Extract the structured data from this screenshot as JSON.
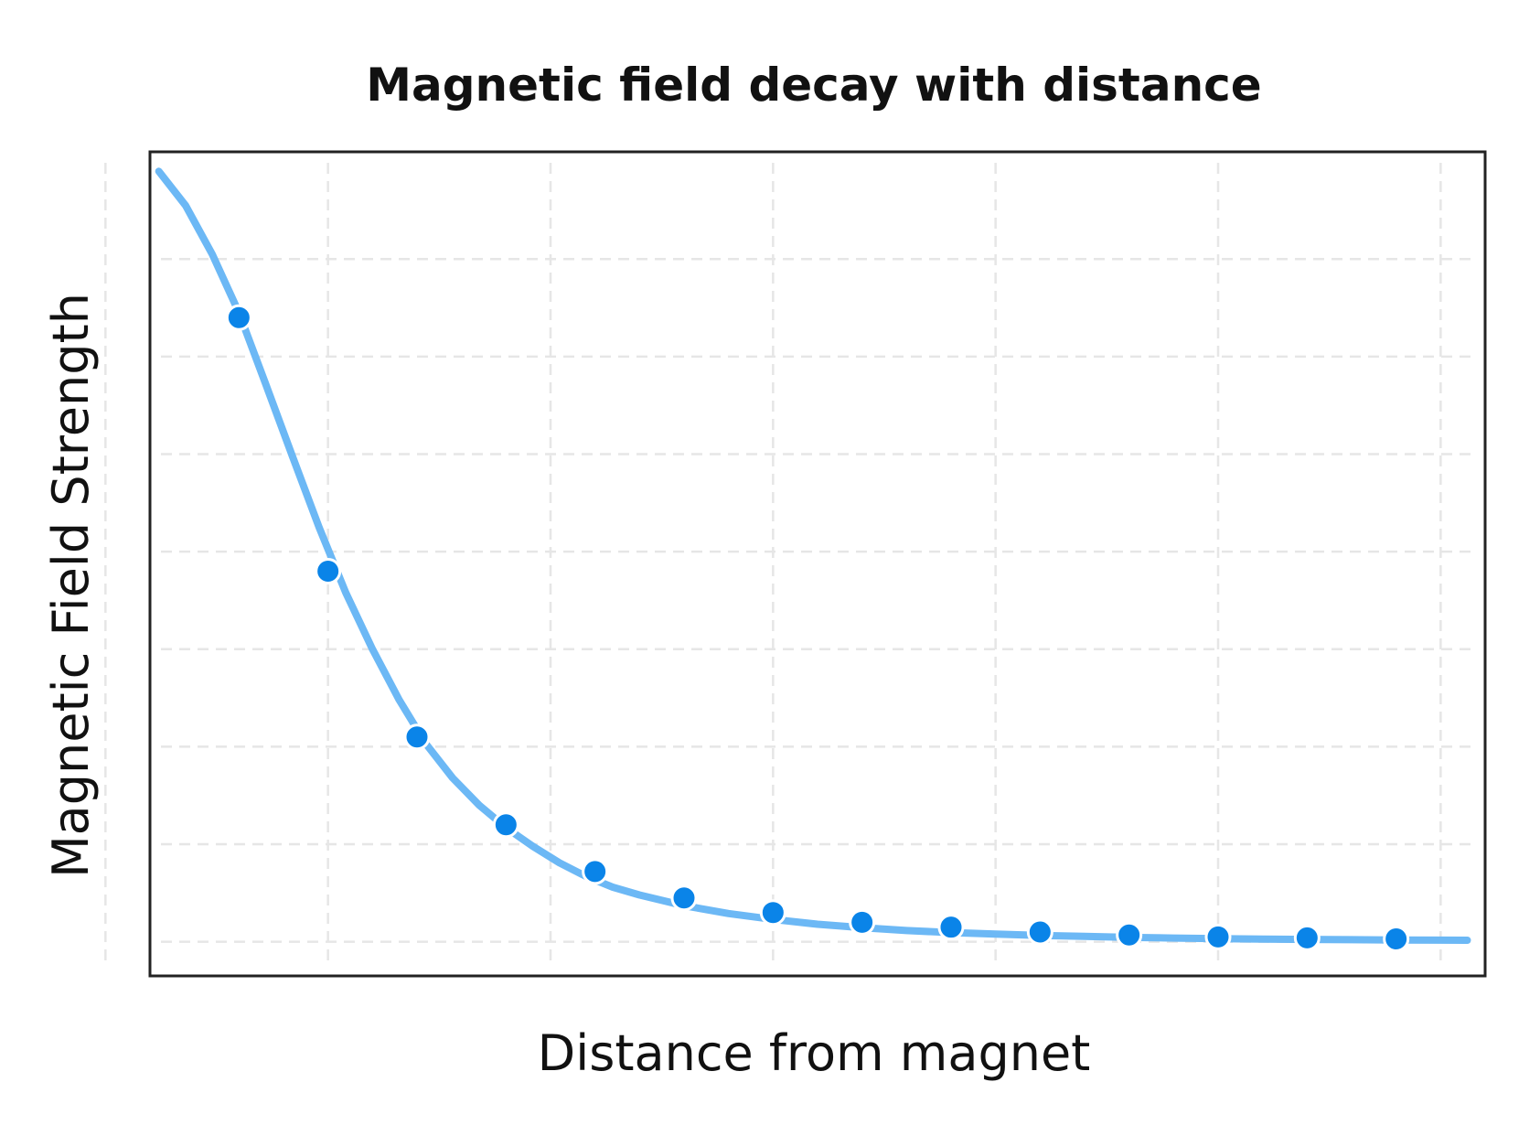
{
  "chart_data": {
    "type": "line",
    "title": "Magnetic field decay with distance",
    "xlabel": "Distance from magnet",
    "ylabel": "Magnetic Field Strength",
    "xlim": [
      0.5,
      15.5
    ],
    "ylim": [
      -0.35,
      8.1
    ],
    "grid": true,
    "x_ticks_shown": false,
    "y_ticks_shown": false,
    "colors": {
      "curve": "#6cb8f5",
      "points": "#0a84e8",
      "frame": "#222222",
      "grid": "#e6e6e6"
    },
    "curve": {
      "x": [
        0.6,
        0.9,
        1.2,
        1.5,
        1.8,
        2.1,
        2.4,
        2.7,
        3.0,
        3.3,
        3.6,
        3.9,
        4.2,
        4.5,
        4.8,
        5.1,
        5.4,
        5.7,
        6.0,
        6.5,
        7.0,
        7.5,
        8.0,
        8.5,
        9.0,
        9.5,
        10.0,
        10.5,
        11.0,
        11.5,
        12.0,
        12.5,
        13.0,
        13.5,
        14.0,
        14.5,
        15.0,
        15.3
      ],
      "y": [
        7.9,
        7.55,
        7.05,
        6.45,
        5.72,
        4.98,
        4.25,
        3.58,
        3.0,
        2.48,
        2.03,
        1.68,
        1.4,
        1.17,
        0.98,
        0.81,
        0.67,
        0.56,
        0.48,
        0.37,
        0.29,
        0.23,
        0.18,
        0.145,
        0.115,
        0.095,
        0.08,
        0.065,
        0.055,
        0.045,
        0.038,
        0.032,
        0.028,
        0.024,
        0.021,
        0.019,
        0.017,
        0.016
      ]
    },
    "series": [
      {
        "x": [
          1.5,
          2.5,
          3.5,
          4.5,
          5.5,
          6.5,
          7.5,
          8.5,
          9.5,
          10.5,
          11.5,
          12.5,
          13.5,
          14.5
        ],
        "y": [
          6.4,
          3.8,
          2.1,
          1.2,
          0.72,
          0.45,
          0.3,
          0.2,
          0.15,
          0.1,
          0.07,
          0.05,
          0.04,
          0.03
        ]
      }
    ]
  }
}
